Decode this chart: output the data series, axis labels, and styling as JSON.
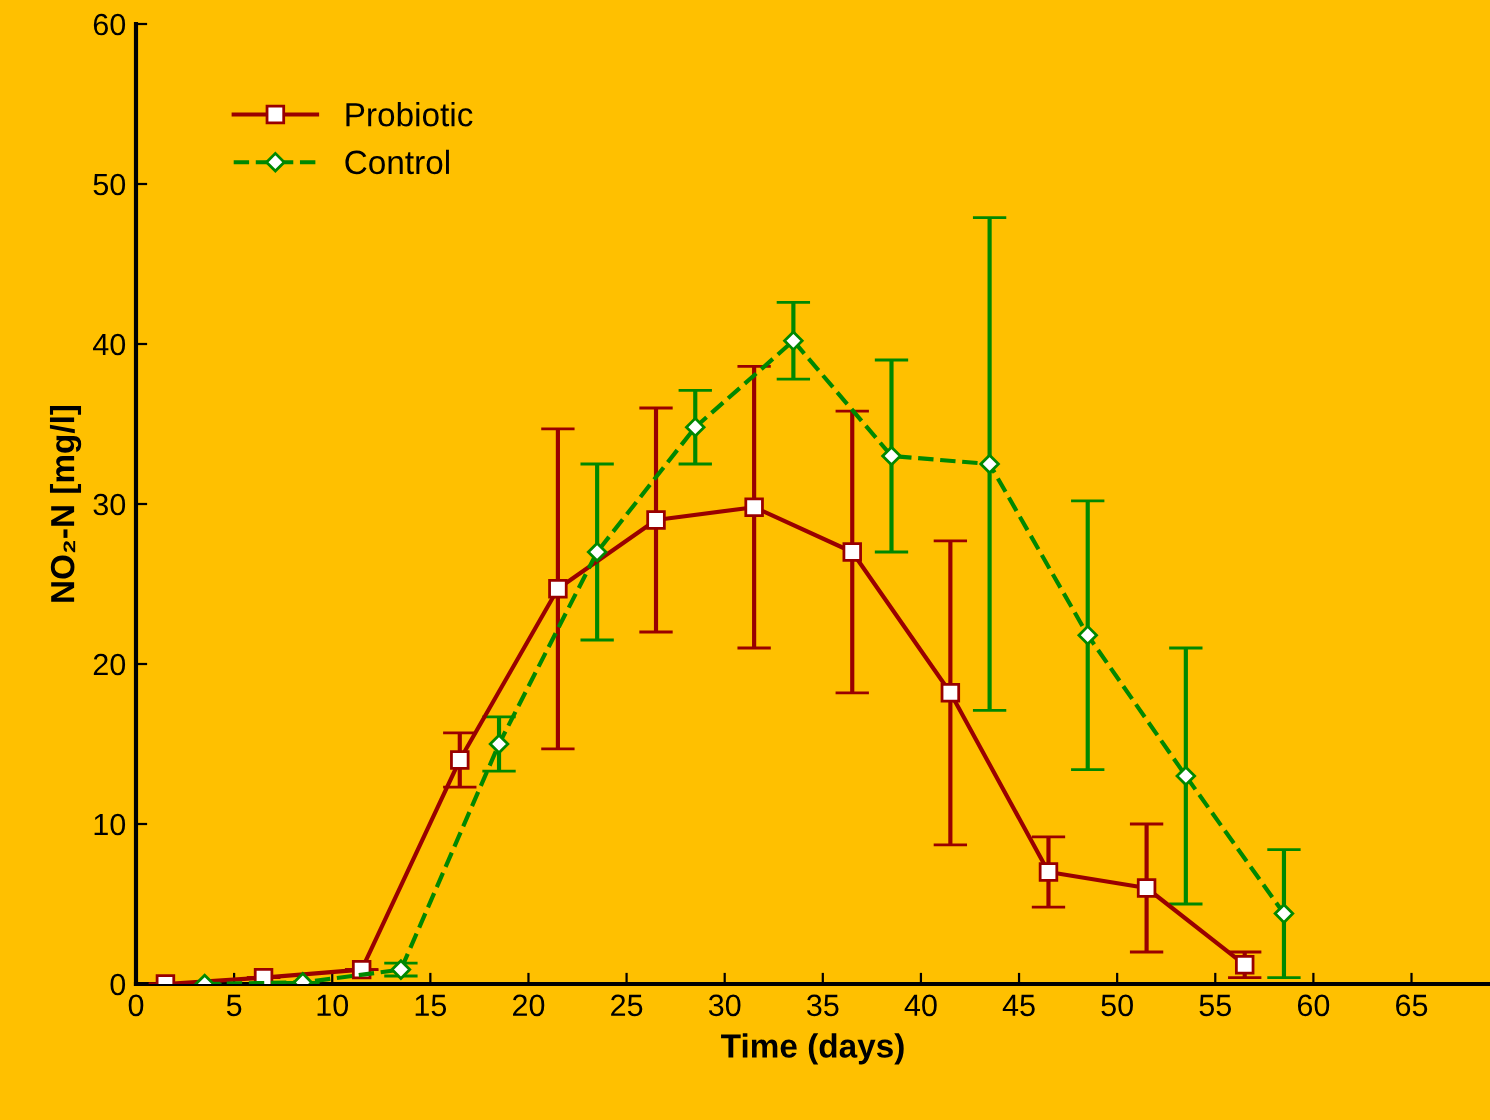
{
  "chart_data": {
    "type": "line",
    "xlabel": "Time (days)",
    "ylabel": "NO₂-N [mg/l]",
    "xlim": [
      0,
      69
    ],
    "xticks": [
      0,
      5,
      10,
      15,
      20,
      25,
      30,
      35,
      40,
      45,
      50,
      55,
      60,
      65
    ],
    "ylim": [
      0,
      60
    ],
    "yticks": [
      0,
      10,
      20,
      30,
      40,
      50,
      60
    ],
    "grid": false,
    "legend": "top left",
    "series": [
      {
        "name": "Probiotic",
        "color": "#990000",
        "marker": "square",
        "line_style": "solid",
        "x": [
          1.5,
          6.5,
          11.5,
          16.5,
          21.5,
          26.5,
          31.5,
          36.5,
          41.5,
          46.5,
          51.5,
          56.5
        ],
        "values": [
          0,
          0.4,
          0.9,
          14,
          24.7,
          29,
          29.8,
          27,
          18.2,
          7,
          6,
          1.2
        ],
        "errors": [
          null,
          null,
          null,
          1.7,
          10,
          7,
          8.8,
          8.8,
          9.5,
          2.2,
          4,
          0.8
        ]
      },
      {
        "name": "Control",
        "color": "#008800",
        "marker": "diamond",
        "line_style": "dashed",
        "x": [
          3.5,
          8.5,
          13.5,
          18.5,
          23.5,
          28.5,
          33.5,
          38.5,
          43.5,
          48.5,
          53.5,
          58.5
        ],
        "values": [
          0,
          0.1,
          0.9,
          15,
          27,
          34.8,
          40.2,
          33,
          32.5,
          21.8,
          13,
          4.4
        ],
        "errors": [
          null,
          null,
          0.4,
          1.7,
          5.5,
          2.3,
          2.4,
          6,
          15.4,
          8.4,
          8,
          4
        ]
      }
    ]
  }
}
